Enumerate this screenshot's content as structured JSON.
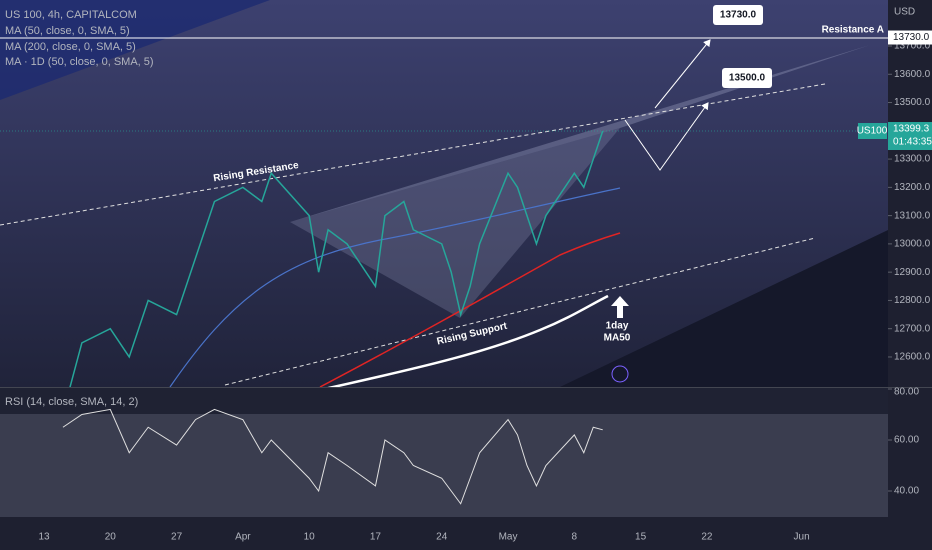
{
  "legend": [
    "US 100, 4h, CAPITALCOM",
    "MA (50, close, 0, SMA, 5)",
    "MA (200, close, 0, SMA, 5)",
    "MA · 1D (50, close, 0, SMA, 5)"
  ],
  "currency": "USD",
  "price_axis": {
    "ticks": [
      {
        "value": 13700,
        "label": "13700.0"
      },
      {
        "value": 13600,
        "label": "13600.0"
      },
      {
        "value": 13500,
        "label": "13500.0"
      },
      {
        "value": 13300,
        "label": "13300.0"
      },
      {
        "value": 13200,
        "label": "13200.0"
      },
      {
        "value": 13100,
        "label": "13100.0"
      },
      {
        "value": 13000,
        "label": "13000.0"
      },
      {
        "value": 12900,
        "label": "12900.0"
      },
      {
        "value": 12800,
        "label": "12800.0"
      },
      {
        "value": 12700,
        "label": "12700.0"
      },
      {
        "value": 12600,
        "label": "12600.0"
      }
    ]
  },
  "resistance_tag": {
    "value": 13730,
    "label": "13730.0"
  },
  "last_price": {
    "symbol": "US100",
    "value": 13399.3,
    "label": "13399.3",
    "countdown": "01:43:35"
  },
  "annotations": {
    "target_high": "13730.0",
    "target_low": "13500.0",
    "resistance": "Resistance A",
    "rising_resistance": "Rising Resistance",
    "rising_support": "Rising Support",
    "ma_note": [
      "1day",
      "MA50"
    ]
  },
  "price": {
    "x": [
      "Mar 15",
      "Mar 17",
      "Mar 20",
      "Mar 22",
      "Mar 24",
      "Mar 27",
      "Mar 29",
      "Mar 31",
      "Apr 3",
      "Apr 5",
      "Apr 6",
      "Apr 10",
      "Apr 11",
      "Apr 12",
      "Apr 14",
      "Apr 17",
      "Apr 18",
      "Apr 20",
      "Apr 21",
      "Apr 24",
      "Apr 25",
      "Apr 26",
      "Apr 27",
      "Apr 28",
      "May 1",
      "May 2",
      "May 3",
      "May 4",
      "May 5",
      "May 8",
      "May 9",
      "May 10",
      "May 11"
    ],
    "values": [
      12400,
      12650,
      12700,
      12600,
      12800,
      12750,
      12950,
      13150,
      13200,
      13150,
      13250,
      13100,
      12900,
      13050,
      13000,
      12850,
      13100,
      13150,
      13050,
      13000,
      12900,
      12750,
      12850,
      13000,
      13250,
      13200,
      13100,
      13000,
      13100,
      13250,
      13200,
      13300,
      13399.3
    ],
    "rsi": [
      65,
      70,
      72,
      55,
      65,
      58,
      68,
      72,
      68,
      55,
      60,
      45,
      40,
      55,
      50,
      42,
      60,
      55,
      50,
      45,
      40,
      35,
      45,
      55,
      68,
      62,
      50,
      42,
      50,
      62,
      55,
      65,
      64
    ]
  },
  "rsi": {
    "legend": "RSI (14, close, SMA, 14, 2)",
    "ticks": [
      {
        "value": 80,
        "label": "80.00"
      },
      {
        "value": 60,
        "label": "60.00"
      },
      {
        "value": 40,
        "label": "40.00"
      }
    ]
  },
  "time_axis": [
    {
      "date": "Mar 13",
      "label": "13"
    },
    {
      "date": "Mar 20",
      "label": "20"
    },
    {
      "date": "Mar 27",
      "label": "27"
    },
    {
      "date": "Apr 3",
      "label": "Apr"
    },
    {
      "date": "Apr 10",
      "label": "10"
    },
    {
      "date": "Apr 17",
      "label": "17"
    },
    {
      "date": "Apr 24",
      "label": "24"
    },
    {
      "date": "May 1",
      "label": "May"
    },
    {
      "date": "May 8",
      "label": "8"
    },
    {
      "date": "May 15",
      "label": "15"
    },
    {
      "date": "May 22",
      "label": "22"
    },
    {
      "date": "Jun 1",
      "label": "Jun"
    }
  ]
}
